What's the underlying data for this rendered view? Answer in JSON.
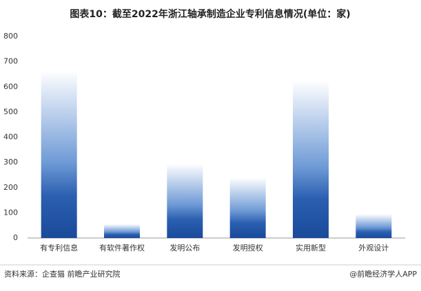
{
  "chart_data": {
    "type": "bar",
    "title": "图表10：截至2022年浙江轴承制造企业专利信息情况(单位：家)",
    "categories": [
      "有专利信息",
      "有软件著作权",
      "发明公布",
      "发明授权",
      "实用新型",
      "外观设计"
    ],
    "values": [
      665,
      55,
      295,
      240,
      625,
      95
    ],
    "color": "#1a4a9a",
    "ylim": [
      0,
      800
    ],
    "yticks": [
      0,
      100,
      200,
      300,
      400,
      500,
      600,
      700,
      800
    ],
    "grid": false,
    "source": "资料来源：企查猫 前瞻产业研究院",
    "credit": "@前瞻经济学人APP"
  }
}
